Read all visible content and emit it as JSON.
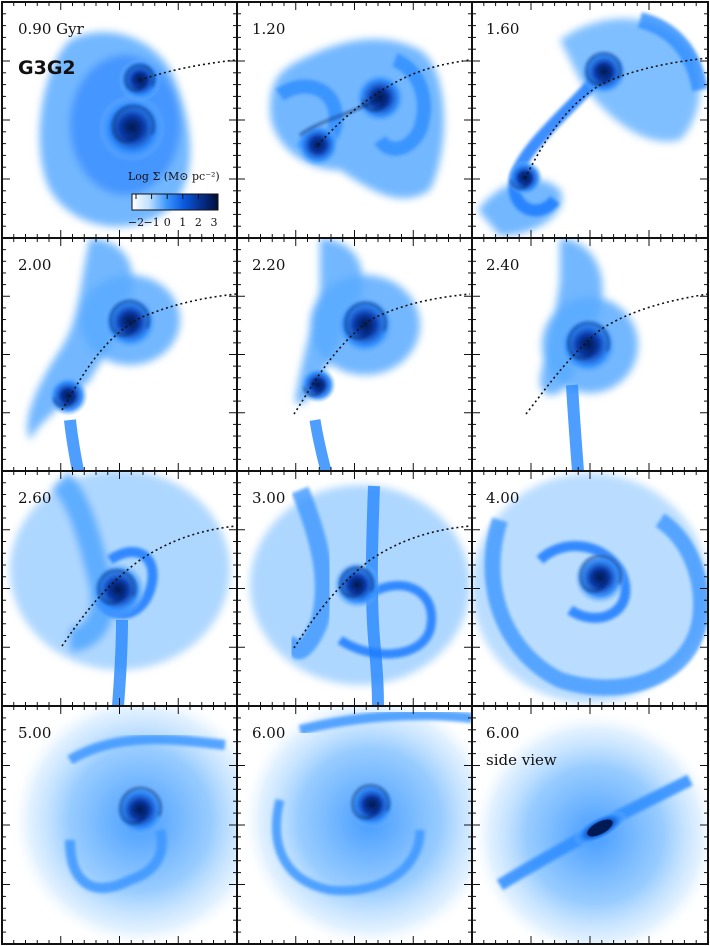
{
  "figure": {
    "simulation_label": "G3G2",
    "panels": [
      {
        "label": "0.90 Gyr",
        "view": "face-on",
        "stage": "approach"
      },
      {
        "label": "1.20",
        "view": "face-on",
        "stage": "first-passage"
      },
      {
        "label": "1.60",
        "view": "face-on",
        "stage": "separation"
      },
      {
        "label": "2.00",
        "view": "face-on",
        "stage": "second-approach"
      },
      {
        "label": "2.20",
        "view": "face-on",
        "stage": "second-approach"
      },
      {
        "label": "2.40",
        "view": "face-on",
        "stage": "coalescence"
      },
      {
        "label": "2.60",
        "view": "face-on",
        "stage": "coalescence"
      },
      {
        "label": "3.00",
        "view": "face-on",
        "stage": "coalescence"
      },
      {
        "label": "4.00",
        "view": "face-on",
        "stage": "remnant"
      },
      {
        "label": "5.00",
        "view": "face-on",
        "stage": "remnant"
      },
      {
        "label": "6.00",
        "view": "face-on",
        "stage": "remnant"
      },
      {
        "label": "6.00",
        "sublabel": "side view",
        "view": "edge-on",
        "stage": "remnant"
      }
    ],
    "colorbar": {
      "title": "Log Σ (M⊙ pc⁻²)",
      "tick_labels": [
        "−2",
        "−1",
        "0",
        "1",
        "2",
        "3"
      ],
      "colors": [
        "#ffffff",
        "#6fb3ff",
        "#1f7bff",
        "#0046d6",
        "#002a8f",
        "#00124a"
      ]
    },
    "colors": {
      "gas_light": "#9fd0ff",
      "gas_mid": "#2f8dff",
      "gas_dense": "#0a3aa8",
      "gas_core": "#001a55",
      "frame": "#111111"
    }
  }
}
